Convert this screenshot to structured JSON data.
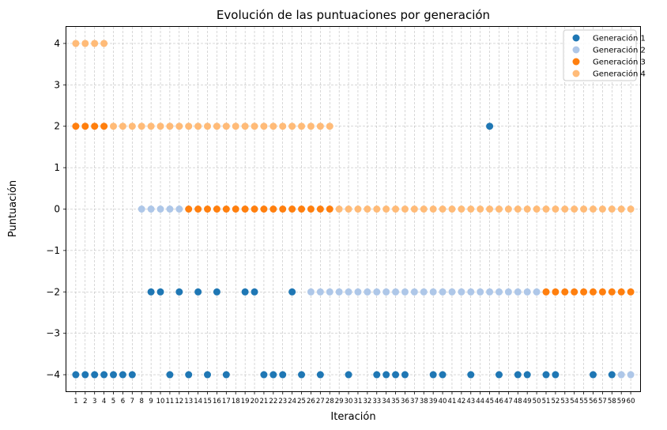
{
  "chart_data": {
    "type": "scatter",
    "title": "Evolución de las puntuaciones por generación",
    "xlabel": "Iteración",
    "ylabel": "Puntuación",
    "xlim": [
      0,
      61
    ],
    "ylim": [
      -4.4,
      4.4
    ],
    "x_ticks": [
      1,
      2,
      3,
      4,
      5,
      6,
      7,
      8,
      9,
      10,
      11,
      12,
      13,
      14,
      15,
      16,
      17,
      18,
      19,
      20,
      21,
      22,
      23,
      24,
      25,
      26,
      27,
      28,
      29,
      30,
      31,
      32,
      33,
      34,
      35,
      36,
      37,
      38,
      39,
      40,
      41,
      42,
      43,
      44,
      45,
      46,
      47,
      48,
      49,
      50,
      51,
      52,
      53,
      54,
      55,
      56,
      57,
      58,
      59,
      60
    ],
    "y_ticks": [
      -4,
      -3,
      -2,
      -1,
      0,
      1,
      2,
      3,
      4
    ],
    "grid": true,
    "legend_position": "top-right",
    "series": [
      {
        "name": "Generación 1",
        "color": "#1f77b4",
        "points": [
          [
            1,
            -4
          ],
          [
            2,
            -4
          ],
          [
            3,
            -4
          ],
          [
            4,
            -4
          ],
          [
            5,
            -4
          ],
          [
            6,
            -4
          ],
          [
            7,
            -4
          ],
          [
            9,
            -2
          ],
          [
            10,
            -2
          ],
          [
            11,
            -4
          ],
          [
            12,
            -2
          ],
          [
            13,
            -4
          ],
          [
            14,
            -2
          ],
          [
            15,
            -4
          ],
          [
            16,
            -2
          ],
          [
            17,
            -4
          ],
          [
            19,
            -2
          ],
          [
            20,
            -2
          ],
          [
            21,
            -4
          ],
          [
            22,
            -4
          ],
          [
            23,
            -4
          ],
          [
            24,
            -2
          ],
          [
            25,
            -4
          ],
          [
            27,
            -4
          ],
          [
            30,
            -4
          ],
          [
            33,
            -4
          ],
          [
            34,
            -4
          ],
          [
            35,
            -4
          ],
          [
            36,
            -4
          ],
          [
            39,
            -4
          ],
          [
            40,
            -4
          ],
          [
            43,
            -4
          ],
          [
            45,
            2
          ],
          [
            46,
            -4
          ],
          [
            48,
            -4
          ],
          [
            49,
            -4
          ],
          [
            51,
            -4
          ],
          [
            52,
            -4
          ],
          [
            56,
            -4
          ],
          [
            58,
            -4
          ]
        ]
      },
      {
        "name": "Generación 2",
        "color": "#aec7e8",
        "points": [
          [
            8,
            0
          ],
          [
            9,
            0
          ],
          [
            10,
            0
          ],
          [
            11,
            0
          ],
          [
            12,
            0
          ],
          [
            26,
            -2
          ],
          [
            27,
            -2
          ],
          [
            28,
            -2
          ],
          [
            29,
            -2
          ],
          [
            30,
            -2
          ],
          [
            31,
            -2
          ],
          [
            32,
            -2
          ],
          [
            33,
            -2
          ],
          [
            34,
            -2
          ],
          [
            35,
            -2
          ],
          [
            36,
            -2
          ],
          [
            37,
            -2
          ],
          [
            38,
            -2
          ],
          [
            39,
            -2
          ],
          [
            40,
            -2
          ],
          [
            41,
            -2
          ],
          [
            42,
            -2
          ],
          [
            43,
            -2
          ],
          [
            44,
            -2
          ],
          [
            45,
            -2
          ],
          [
            46,
            -2
          ],
          [
            47,
            -2
          ],
          [
            48,
            -2
          ],
          [
            49,
            -2
          ],
          [
            50,
            -2
          ],
          [
            59,
            -4
          ],
          [
            60,
            -4
          ]
        ]
      },
      {
        "name": "Generación 3",
        "color": "#ff7f0e",
        "points": [
          [
            1,
            2
          ],
          [
            2,
            2
          ],
          [
            3,
            2
          ],
          [
            4,
            2
          ],
          [
            13,
            0
          ],
          [
            14,
            0
          ],
          [
            15,
            0
          ],
          [
            16,
            0
          ],
          [
            17,
            0
          ],
          [
            18,
            0
          ],
          [
            19,
            0
          ],
          [
            20,
            0
          ],
          [
            21,
            0
          ],
          [
            22,
            0
          ],
          [
            23,
            0
          ],
          [
            24,
            0
          ],
          [
            25,
            0
          ],
          [
            26,
            0
          ],
          [
            27,
            0
          ],
          [
            28,
            0
          ],
          [
            51,
            -2
          ],
          [
            52,
            -2
          ],
          [
            53,
            -2
          ],
          [
            54,
            -2
          ],
          [
            55,
            -2
          ],
          [
            56,
            -2
          ],
          [
            57,
            -2
          ],
          [
            58,
            -2
          ],
          [
            59,
            -2
          ],
          [
            60,
            -2
          ]
        ]
      },
      {
        "name": "Generación 4",
        "color": "#ffbb78",
        "points": [
          [
            1,
            4
          ],
          [
            2,
            4
          ],
          [
            3,
            4
          ],
          [
            4,
            4
          ],
          [
            5,
            2
          ],
          [
            6,
            2
          ],
          [
            7,
            2
          ],
          [
            8,
            2
          ],
          [
            9,
            2
          ],
          [
            10,
            2
          ],
          [
            11,
            2
          ],
          [
            12,
            2
          ],
          [
            13,
            2
          ],
          [
            14,
            2
          ],
          [
            15,
            2
          ],
          [
            16,
            2
          ],
          [
            17,
            2
          ],
          [
            18,
            2
          ],
          [
            19,
            2
          ],
          [
            20,
            2
          ],
          [
            21,
            2
          ],
          [
            22,
            2
          ],
          [
            23,
            2
          ],
          [
            24,
            2
          ],
          [
            25,
            2
          ],
          [
            26,
            2
          ],
          [
            27,
            2
          ],
          [
            28,
            2
          ],
          [
            29,
            0
          ],
          [
            30,
            0
          ],
          [
            31,
            0
          ],
          [
            32,
            0
          ],
          [
            33,
            0
          ],
          [
            34,
            0
          ],
          [
            35,
            0
          ],
          [
            36,
            0
          ],
          [
            37,
            0
          ],
          [
            38,
            0
          ],
          [
            39,
            0
          ],
          [
            40,
            0
          ],
          [
            41,
            0
          ],
          [
            42,
            0
          ],
          [
            43,
            0
          ],
          [
            44,
            0
          ],
          [
            45,
            0
          ],
          [
            46,
            0
          ],
          [
            47,
            0
          ],
          [
            48,
            0
          ],
          [
            49,
            0
          ],
          [
            50,
            0
          ],
          [
            51,
            0
          ],
          [
            52,
            0
          ],
          [
            53,
            0
          ],
          [
            54,
            0
          ],
          [
            55,
            0
          ],
          [
            56,
            0
          ],
          [
            57,
            0
          ],
          [
            58,
            0
          ],
          [
            59,
            0
          ],
          [
            60,
            0
          ]
        ]
      }
    ]
  }
}
